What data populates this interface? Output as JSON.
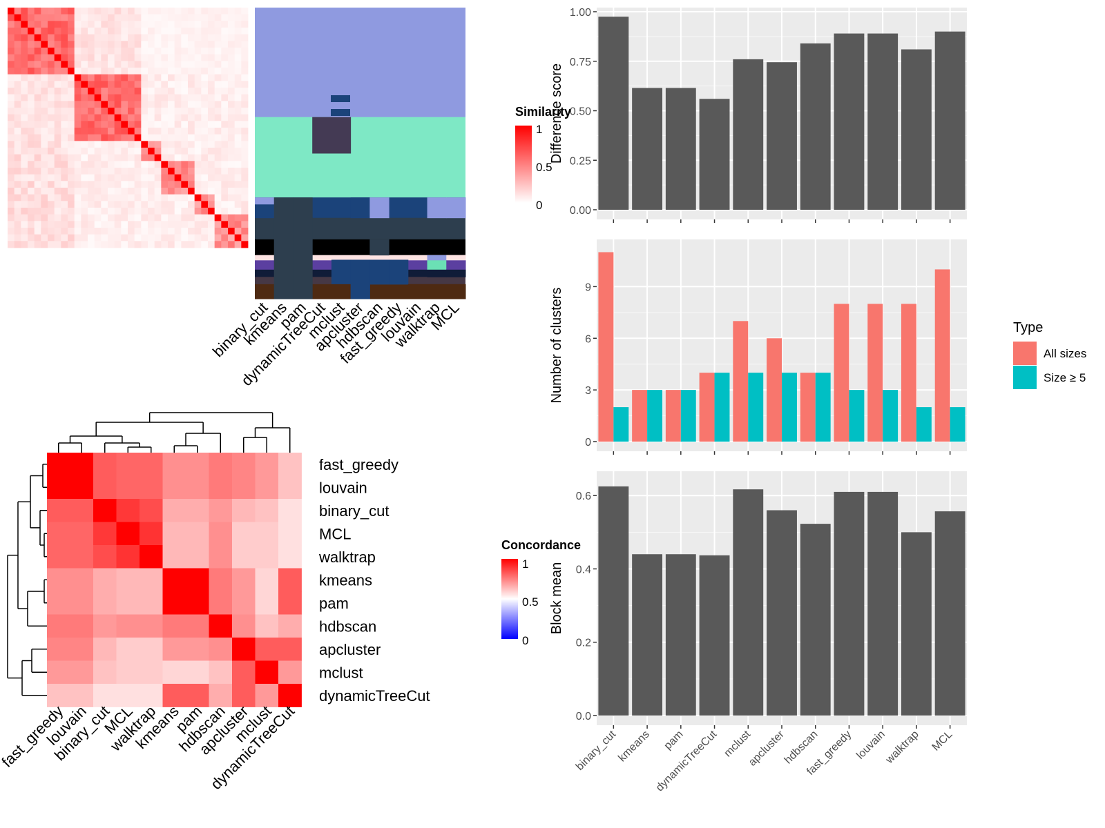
{
  "chart_data": [
    {
      "type": "heatmap",
      "name": "similarity-heatmap",
      "legend_title": "Similarity",
      "legend_ticks": [
        "1",
        "0.5",
        "0"
      ],
      "n": 36,
      "blocks": [
        [
          0,
          9
        ],
        [
          10,
          19
        ],
        [
          20,
          22
        ],
        [
          23,
          27
        ],
        [
          28,
          30
        ],
        [
          31,
          35
        ]
      ],
      "colors": {
        "low": "#ffffff",
        "high": "#ff0000"
      }
    },
    {
      "type": "heatmap",
      "name": "membership-heatmap",
      "columns": [
        "binary_cut",
        "kmeans",
        "pam",
        "dynamicTreeCut",
        "mclust",
        "apcluster",
        "hdbscan",
        "fast_greedy",
        "louvain",
        "walktrap",
        "MCL"
      ],
      "palette": {
        "A": "#8f9ae0",
        "B": "#7ee8c5",
        "C": "#443a54",
        "D": "#1b437a",
        "E": "#2d3e4e",
        "F": "#000000",
        "G": "#4e2a12",
        "H": "#5b3fa0",
        "I": "#fde3e3",
        "J": "#101c38",
        "K": "#463845",
        "L": "#6be0b5"
      }
    },
    {
      "type": "bar",
      "name": "difference-score",
      "categories": [
        "binary_cut",
        "kmeans",
        "pam",
        "dynamicTreeCut",
        "mclust",
        "apcluster",
        "hdbscan",
        "fast_greedy",
        "louvain",
        "walktrap",
        "MCL"
      ],
      "values": [
        0.975,
        0.615,
        0.615,
        0.56,
        0.76,
        0.745,
        0.84,
        0.89,
        0.89,
        0.81,
        0.9
      ],
      "ylabel": "Difference score",
      "ylim": [
        0,
        1.0
      ],
      "yticks": [
        "0.00",
        "0.25",
        "0.50",
        "0.75",
        "1.00"
      ],
      "ytick_values": [
        0,
        0.25,
        0.5,
        0.75,
        1.0
      ],
      "bar_color": "#595959"
    },
    {
      "type": "bar",
      "name": "number-of-clusters",
      "categories": [
        "binary_cut",
        "kmeans",
        "pam",
        "dynamicTreeCut",
        "mclust",
        "apcluster",
        "hdbscan",
        "fast_greedy",
        "louvain",
        "walktrap",
        "MCL"
      ],
      "series": [
        {
          "name": "All sizes",
          "values": [
            11,
            3,
            3,
            4,
            7,
            6,
            4,
            8,
            8,
            8,
            10
          ],
          "color": "#f8766d"
        },
        {
          "name": "Size ≥ 5",
          "values": [
            2,
            3,
            3,
            4,
            4,
            4,
            4,
            3,
            3,
            2,
            2
          ],
          "color": "#00bfc4"
        }
      ],
      "ylabel": "Number of clusters",
      "legend_title": "Type",
      "ylim": [
        0,
        11.5
      ],
      "yticks": [
        "0",
        "3",
        "6",
        "9"
      ],
      "ytick_values": [
        0,
        3,
        6,
        9
      ]
    },
    {
      "type": "bar",
      "name": "block-mean",
      "categories": [
        "binary_cut",
        "kmeans",
        "pam",
        "dynamicTreeCut",
        "mclust",
        "apcluster",
        "hdbscan",
        "fast_greedy",
        "louvain",
        "walktrap",
        "MCL"
      ],
      "values": [
        0.625,
        0.44,
        0.44,
        0.437,
        0.617,
        0.56,
        0.523,
        0.61,
        0.61,
        0.5,
        0.557
      ],
      "ylabel": "Block mean",
      "ylim": [
        0,
        0.655
      ],
      "yticks": [
        "0.0",
        "0.2",
        "0.4",
        "0.6"
      ],
      "ytick_values": [
        0,
        0.2,
        0.4,
        0.6
      ],
      "bar_color": "#595959"
    },
    {
      "type": "heatmap",
      "name": "concordance-heatmap",
      "legend_title": "Concordance",
      "legend_ticks": [
        "1",
        "0.5",
        "0"
      ],
      "labels": [
        "fast_greedy",
        "louvain",
        "binary_cut",
        "MCL",
        "walktrap",
        "kmeans",
        "pam",
        "hdbscan",
        "apcluster",
        "mclust",
        "dynamicTreeCut"
      ],
      "values": [
        [
          1.0,
          1.0,
          0.82,
          0.8,
          0.8,
          0.72,
          0.72,
          0.76,
          0.74,
          0.7,
          0.62
        ],
        [
          1.0,
          1.0,
          0.82,
          0.8,
          0.8,
          0.72,
          0.72,
          0.76,
          0.74,
          0.7,
          0.62
        ],
        [
          0.82,
          0.82,
          1.0,
          0.89,
          0.85,
          0.66,
          0.66,
          0.7,
          0.64,
          0.62,
          0.56
        ],
        [
          0.8,
          0.8,
          0.89,
          1.0,
          0.9,
          0.64,
          0.64,
          0.72,
          0.6,
          0.6,
          0.56
        ],
        [
          0.8,
          0.8,
          0.85,
          0.9,
          1.0,
          0.64,
          0.64,
          0.72,
          0.6,
          0.6,
          0.56
        ],
        [
          0.72,
          0.72,
          0.66,
          0.64,
          0.64,
          1.0,
          1.0,
          0.76,
          0.7,
          0.58,
          0.82
        ],
        [
          0.72,
          0.72,
          0.66,
          0.64,
          0.64,
          1.0,
          1.0,
          0.76,
          0.7,
          0.58,
          0.82
        ],
        [
          0.76,
          0.76,
          0.7,
          0.72,
          0.72,
          0.76,
          0.76,
          1.0,
          0.72,
          0.62,
          0.66
        ],
        [
          0.74,
          0.74,
          0.64,
          0.6,
          0.6,
          0.7,
          0.7,
          0.72,
          1.0,
          0.82,
          0.82
        ],
        [
          0.7,
          0.7,
          0.62,
          0.6,
          0.6,
          0.58,
          0.58,
          0.62,
          0.82,
          1.0,
          0.7
        ],
        [
          0.62,
          0.62,
          0.56,
          0.56,
          0.56,
          0.82,
          0.82,
          0.66,
          0.82,
          0.7,
          1.0
        ]
      ]
    }
  ]
}
